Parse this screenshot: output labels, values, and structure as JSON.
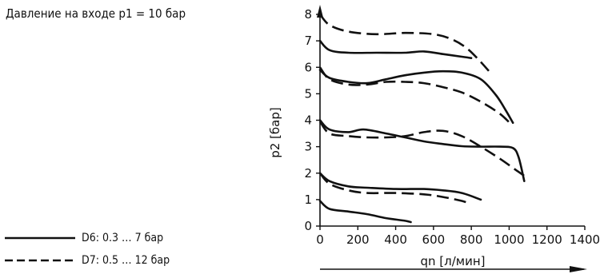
{
  "note": "Давление на входе p1 = 10 бар",
  "legend": [
    {
      "style": "solid",
      "label": "D6: 0.3 … 7 бар"
    },
    {
      "style": "dashed",
      "label": "D7: 0.5 … 12 бар"
    }
  ],
  "chart_data": {
    "type": "line",
    "xlabel": "qn [л/мин]",
    "ylabel": "p2 [бар]",
    "xlim": [
      0,
      1400
    ],
    "ylim": [
      0,
      8
    ],
    "xticks": [
      0,
      200,
      400,
      600,
      800,
      1000,
      1200,
      1400
    ],
    "yticks": [
      0,
      1,
      2,
      3,
      4,
      5,
      6,
      7,
      8
    ],
    "grid": false,
    "series": [
      {
        "style": "dashed",
        "points": [
          [
            0,
            8
          ],
          [
            50,
            7.6
          ],
          [
            150,
            7.35
          ],
          [
            300,
            7.25
          ],
          [
            450,
            7.3
          ],
          [
            600,
            7.25
          ],
          [
            700,
            7.05
          ],
          [
            780,
            6.7
          ],
          [
            850,
            6.2
          ],
          [
            900,
            5.8
          ]
        ]
      },
      {
        "style": "solid",
        "points": [
          [
            0,
            7
          ],
          [
            50,
            6.65
          ],
          [
            150,
            6.55
          ],
          [
            300,
            6.55
          ],
          [
            450,
            6.55
          ],
          [
            550,
            6.6
          ],
          [
            650,
            6.5
          ],
          [
            750,
            6.4
          ],
          [
            800,
            6.35
          ]
        ]
      },
      {
        "style": "solid",
        "points": [
          [
            0,
            5.9
          ],
          [
            50,
            5.6
          ],
          [
            150,
            5.45
          ],
          [
            250,
            5.4
          ],
          [
            350,
            5.55
          ],
          [
            450,
            5.7
          ],
          [
            550,
            5.8
          ],
          [
            650,
            5.85
          ],
          [
            750,
            5.8
          ],
          [
            850,
            5.55
          ],
          [
            930,
            4.95
          ],
          [
            980,
            4.4
          ],
          [
            1020,
            3.9
          ]
        ]
      },
      {
        "style": "dashed",
        "points": [
          [
            0,
            6
          ],
          [
            50,
            5.55
          ],
          [
            150,
            5.35
          ],
          [
            250,
            5.35
          ],
          [
            350,
            5.45
          ],
          [
            450,
            5.45
          ],
          [
            550,
            5.4
          ],
          [
            650,
            5.25
          ],
          [
            750,
            5.05
          ],
          [
            850,
            4.7
          ],
          [
            950,
            4.25
          ],
          [
            1010,
            3.85
          ]
        ]
      },
      {
        "style": "solid",
        "points": [
          [
            0,
            4
          ],
          [
            50,
            3.65
          ],
          [
            150,
            3.55
          ],
          [
            230,
            3.65
          ],
          [
            350,
            3.5
          ],
          [
            450,
            3.35
          ],
          [
            550,
            3.2
          ],
          [
            650,
            3.1
          ],
          [
            750,
            3.02
          ],
          [
            850,
            3
          ],
          [
            950,
            3
          ],
          [
            1020,
            2.95
          ],
          [
            1050,
            2.6
          ],
          [
            1080,
            1.7
          ]
        ]
      },
      {
        "style": "dashed",
        "points": [
          [
            0,
            3.95
          ],
          [
            50,
            3.5
          ],
          [
            150,
            3.4
          ],
          [
            250,
            3.35
          ],
          [
            350,
            3.35
          ],
          [
            450,
            3.4
          ],
          [
            550,
            3.55
          ],
          [
            650,
            3.6
          ],
          [
            750,
            3.4
          ],
          [
            850,
            3
          ],
          [
            950,
            2.55
          ],
          [
            1030,
            2.15
          ],
          [
            1080,
            1.9
          ]
        ]
      },
      {
        "style": "solid",
        "points": [
          [
            0,
            2
          ],
          [
            50,
            1.7
          ],
          [
            150,
            1.5
          ],
          [
            250,
            1.45
          ],
          [
            400,
            1.4
          ],
          [
            550,
            1.4
          ],
          [
            650,
            1.35
          ],
          [
            750,
            1.25
          ],
          [
            850,
            1
          ]
        ]
      },
      {
        "style": "dashed",
        "points": [
          [
            0,
            2
          ],
          [
            50,
            1.6
          ],
          [
            150,
            1.35
          ],
          [
            250,
            1.25
          ],
          [
            400,
            1.25
          ],
          [
            550,
            1.2
          ],
          [
            650,
            1.1
          ],
          [
            750,
            0.95
          ],
          [
            790,
            0.85
          ]
        ]
      },
      {
        "style": "solid",
        "points": [
          [
            0,
            0.95
          ],
          [
            50,
            0.65
          ],
          [
            150,
            0.55
          ],
          [
            250,
            0.45
          ],
          [
            350,
            0.3
          ],
          [
            450,
            0.2
          ],
          [
            480,
            0.15
          ]
        ]
      }
    ]
  }
}
